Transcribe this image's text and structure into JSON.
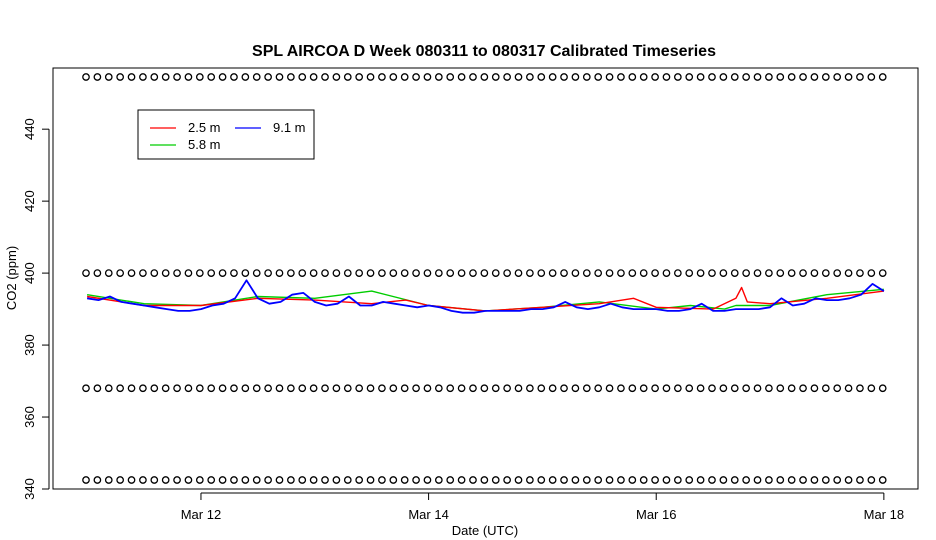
{
  "chart_data": {
    "type": "line",
    "title": "SPL AIRCOA D  Week 080311 to 080317  Calibrated Timeseries",
    "xlabel": "Date (UTC)",
    "ylabel": "CO2 (ppm)",
    "x_ticks": [
      {
        "day": 12,
        "label": "Mar 12"
      },
      {
        "day": 14,
        "label": "Mar 14"
      },
      {
        "day": 16,
        "label": "Mar 16"
      },
      {
        "day": 18,
        "label": "Mar 18"
      }
    ],
    "y_ticks": [
      340,
      360,
      380,
      400,
      420,
      440
    ],
    "xlim": [
      10.7,
      18.3
    ],
    "ylim": [
      340,
      457
    ],
    "legend": {
      "position": "top-left",
      "entries": [
        {
          "name": "2.5 m",
          "color": "#ff0000"
        },
        {
          "name": "5.8 m",
          "color": "#00cd00"
        },
        {
          "name": "9.1 m",
          "color": "#0000ff"
        }
      ]
    },
    "grid": false,
    "reference_levels": [
      454.5,
      400,
      368,
      342.5
    ],
    "reference_x_range": [
      10.99,
      17.99
    ],
    "series": [
      {
        "name": "9.1 m",
        "color": "#0000ff",
        "x": [
          11.0,
          11.1,
          11.2,
          11.3,
          11.4,
          11.5,
          11.6,
          11.7,
          11.8,
          11.9,
          12.0,
          12.1,
          12.2,
          12.3,
          12.4,
          12.5,
          12.6,
          12.7,
          12.8,
          12.9,
          13.0,
          13.1,
          13.2,
          13.3,
          13.4,
          13.5,
          13.6,
          13.7,
          13.8,
          13.9,
          14.0,
          14.1,
          14.2,
          14.3,
          14.4,
          14.5,
          14.6,
          14.7,
          14.8,
          14.9,
          15.0,
          15.1,
          15.2,
          15.3,
          15.4,
          15.5,
          15.6,
          15.7,
          15.8,
          15.9,
          16.0,
          16.1,
          16.2,
          16.3,
          16.4,
          16.5,
          16.6,
          16.7,
          16.8,
          16.9,
          17.0,
          17.1,
          17.2,
          17.3,
          17.4,
          17.5,
          17.6,
          17.7,
          17.8,
          17.9,
          18.0
        ],
        "y": [
          393,
          392.5,
          393.5,
          392,
          391.5,
          391,
          390.5,
          390,
          389.5,
          389.5,
          390,
          391,
          391.5,
          393,
          398,
          393,
          391.5,
          392,
          394,
          394.5,
          392,
          391,
          391.5,
          393.5,
          391,
          391,
          392,
          391.5,
          391,
          390.5,
          391,
          390.5,
          389.5,
          389,
          389,
          389.5,
          389.5,
          389.5,
          389.5,
          390,
          390,
          390.5,
          392,
          390.5,
          390,
          390.5,
          391.5,
          390.5,
          390,
          390,
          390,
          389.5,
          389.5,
          390,
          391.5,
          389.5,
          389.5,
          390,
          390,
          390,
          390.5,
          393,
          391,
          391.5,
          393,
          392.5,
          392.5,
          393,
          394,
          397,
          395
        ]
      },
      {
        "name": "5.8 m",
        "color": "#00cd00",
        "x": [
          11.0,
          11.5,
          12.0,
          12.5,
          13.0,
          13.5,
          14.0,
          14.5,
          15.0,
          15.5,
          16.0,
          16.3,
          16.6,
          16.7,
          16.8,
          17.0,
          17.5,
          18.0
        ],
        "y": [
          394,
          391.5,
          391,
          393.5,
          393,
          395,
          391,
          389.5,
          390.5,
          392,
          390,
          391,
          390,
          391,
          391,
          391,
          394,
          395.5
        ]
      },
      {
        "name": "2.5 m",
        "color": "#ff0000",
        "x": [
          11.0,
          11.5,
          12.0,
          12.5,
          13.0,
          13.5,
          13.8,
          14.0,
          14.5,
          15.0,
          15.5,
          15.8,
          16.0,
          16.5,
          16.7,
          16.75,
          16.8,
          17.0,
          17.5,
          18.0
        ],
        "y": [
          393.5,
          391,
          391,
          393,
          392.5,
          391.5,
          392.5,
          391,
          389.5,
          390.5,
          391.5,
          393,
          390.5,
          390,
          393,
          396,
          392,
          391.5,
          393,
          395
        ]
      }
    ]
  }
}
